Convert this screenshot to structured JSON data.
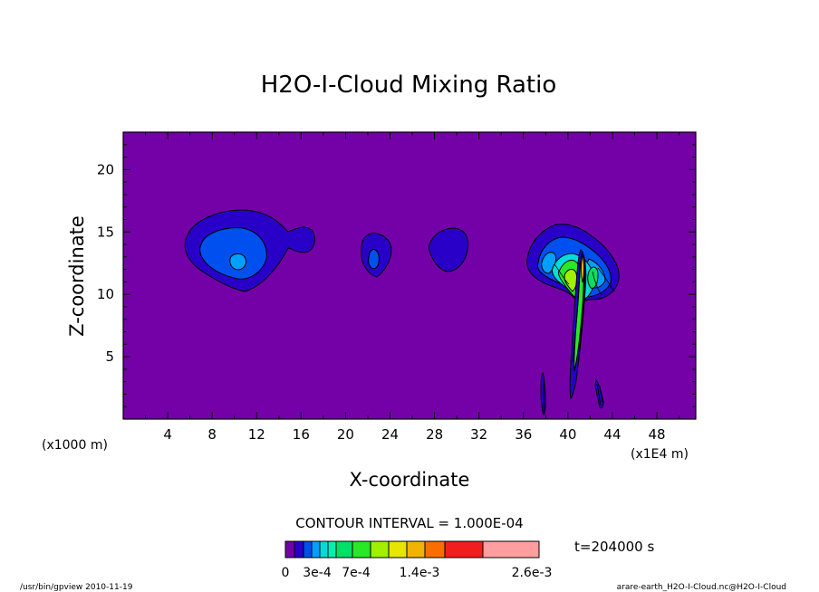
{
  "chart_data": {
    "type": "heatmap",
    "title": "H2O-I-Cloud Mixing Ratio",
    "xlabel": "X-coordinate",
    "ylabel": "Z-coordinate",
    "x_unit": "(x1E4 m)",
    "y_unit": "(x1000 m)",
    "xlim": [
      0,
      51.5
    ],
    "ylim": [
      0,
      23
    ],
    "x_ticks": [
      4,
      8,
      12,
      16,
      20,
      24,
      28,
      32,
      36,
      40,
      44,
      48
    ],
    "y_ticks": [
      5,
      10,
      15,
      20
    ],
    "background_color": "#7400a8",
    "contour_interval_text": "CONTOUR INTERVAL = 1.000E-04",
    "time_text": "t=204000 s",
    "colorbar": {
      "colors": [
        "#7400a8",
        "#2800c8",
        "#0050f0",
        "#00a0ff",
        "#00dcdc",
        "#00f0b4",
        "#00e064",
        "#28e828",
        "#a0f000",
        "#e6e600",
        "#f0b400",
        "#fa6e00",
        "#f01e1e",
        "#ff9e9e"
      ],
      "labels": [
        "0",
        "3e-4",
        "7e-4",
        "1.4e-3",
        "2.6e-3"
      ]
    },
    "cloud_regions": [
      {
        "name": "left-cloud",
        "x_center": 10,
        "z_center": 13.5,
        "levels": 3
      },
      {
        "name": "mid-cloud-1",
        "x_center": 22.5,
        "z_center": 13,
        "levels": 2
      },
      {
        "name": "mid-cloud-2",
        "x_center": 28.5,
        "z_center": 13.5,
        "levels": 1
      },
      {
        "name": "right-cloud",
        "x_center": 40,
        "z_center": 12.5,
        "levels": 9
      }
    ]
  },
  "footer": {
    "left": "/usr/bin/gpview  2010-11-19",
    "right": "arare-earth_H2O-I-Cloud.nc@H2O-I-Cloud"
  }
}
